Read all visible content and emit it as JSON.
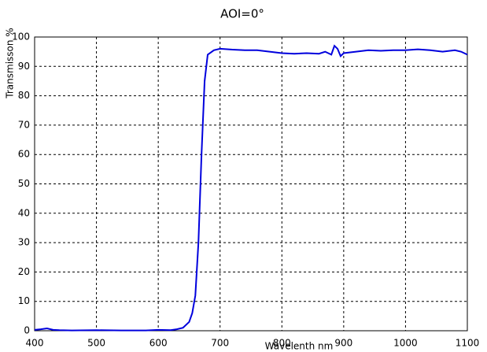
{
  "chart_data": {
    "type": "line",
    "title": "AOI=0°",
    "x_label": "Wavelenth nm",
    "y_label": "Transmisson %",
    "x": [
      400,
      410,
      420,
      430,
      440,
      460,
      500,
      540,
      580,
      600,
      620,
      630,
      640,
      650,
      655,
      660,
      665,
      670,
      675,
      680,
      690,
      700,
      720,
      740,
      760,
      780,
      800,
      820,
      840,
      860,
      870,
      880,
      885,
      890,
      895,
      900,
      920,
      940,
      960,
      980,
      1000,
      1020,
      1040,
      1060,
      1080,
      1090,
      1100
    ],
    "series": [
      {
        "name": "AOI=0°",
        "color": "#0000dd",
        "values": [
          0.3,
          0.5,
          0.8,
          0.3,
          0.2,
          0.1,
          0.2,
          0.1,
          0.1,
          0.3,
          0.2,
          0.5,
          1,
          3,
          6,
          12,
          30,
          60,
          85,
          94,
          95.5,
          96,
          95.7,
          95.5,
          95.5,
          95,
          94.5,
          94.3,
          94.5,
          94.3,
          95,
          94,
          97,
          96,
          93.5,
          94.5,
          95,
          95.5,
          95.3,
          95.5,
          95.5,
          95.8,
          95.5,
          95,
          95.5,
          95,
          94
        ]
      }
    ],
    "xlim": [
      400,
      1100
    ],
    "ylim": [
      0,
      100
    ],
    "xticks": [
      400,
      500,
      600,
      700,
      800,
      900,
      1000,
      1100
    ],
    "yticks": [
      0,
      10,
      20,
      30,
      40,
      50,
      60,
      70,
      80,
      90,
      100
    ],
    "grid": true
  }
}
